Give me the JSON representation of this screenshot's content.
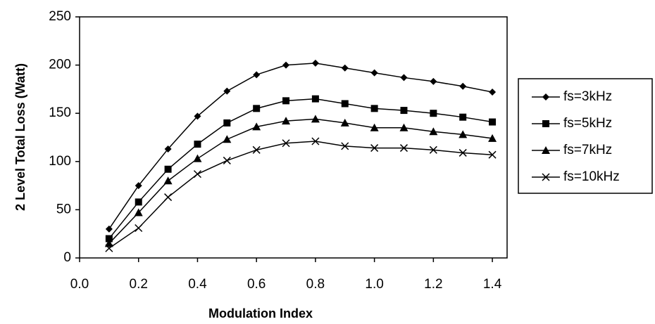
{
  "chart_data": {
    "type": "line",
    "x_label": "Modulation Index",
    "y_label": "2 Level Total Loss (Watt)",
    "x": [
      0.1,
      0.2,
      0.3,
      0.4,
      0.5,
      0.6,
      0.7,
      0.8,
      0.9,
      1.0,
      1.1,
      1.2,
      1.3,
      1.4
    ],
    "series": [
      {
        "name": "fs=3kHz",
        "color": "#000000",
        "marker": "diamond",
        "values": [
          30,
          75,
          113,
          147,
          173,
          190,
          200,
          202,
          197,
          192,
          187,
          183,
          178,
          172
        ]
      },
      {
        "name": "fs=5kHz",
        "color": "#000000",
        "marker": "square",
        "values": [
          20,
          58,
          92,
          118,
          140,
          155,
          163,
          165,
          160,
          155,
          153,
          150,
          146,
          141
        ]
      },
      {
        "name": "fs=7kHz",
        "color": "#000000",
        "marker": "triangle",
        "values": [
          15,
          47,
          80,
          103,
          123,
          136,
          142,
          144,
          140,
          135,
          135,
          131,
          128,
          124
        ]
      },
      {
        "name": "fs=10kHz",
        "color": "#000000",
        "marker": "cross",
        "values": [
          10,
          31,
          63,
          87,
          101,
          112,
          119,
          121,
          116,
          114,
          114,
          112,
          109,
          107
        ]
      }
    ],
    "xlim": [
      0,
      1.45
    ],
    "xticks": [
      {
        "value": 0,
        "label": "0.0"
      },
      0.2,
      0.4,
      0.6,
      0.8,
      {
        "value": 1,
        "label": "1.0"
      },
      1.2,
      1.4
    ],
    "ylim": [
      0,
      250
    ],
    "yticks": [
      0,
      50,
      100,
      150,
      200,
      250
    ],
    "grid": false,
    "legend": "right"
  }
}
